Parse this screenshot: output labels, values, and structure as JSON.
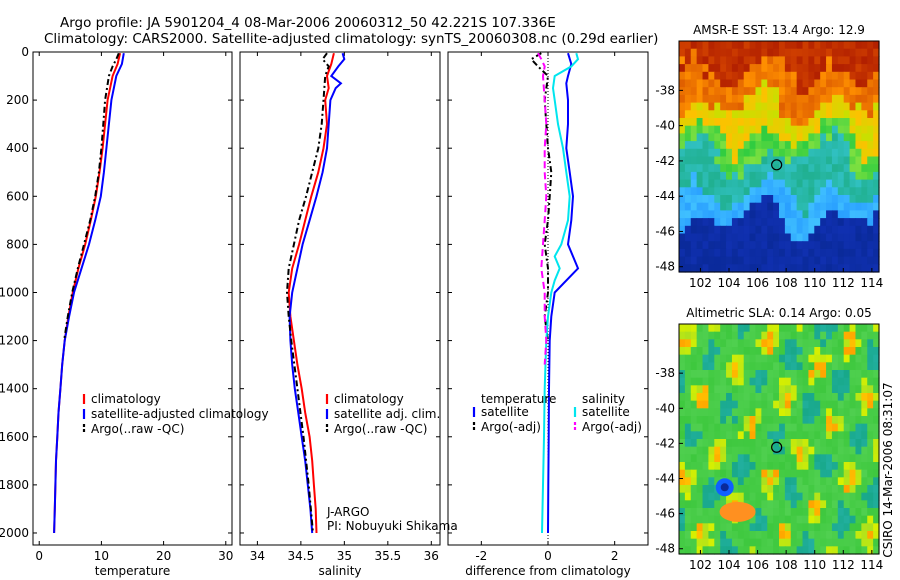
{
  "header": {
    "line1": "Argo profile: JA 5901204_4 08-Mar-2006 20060312_50 42.221S 107.336E",
    "line2": "Climatology: CARS2000. Satellite-adjusted climatology: synTS_20060308.nc (0.29d earlier)"
  },
  "chart_data": [
    {
      "type": "line",
      "xlabel": "temperature",
      "xlim": [
        -1,
        31
      ],
      "xticks": [
        0,
        10,
        20,
        30
      ],
      "ylim": [
        2050,
        0
      ],
      "yticks": [
        0,
        200,
        400,
        600,
        800,
        1000,
        1200,
        1400,
        1600,
        1800,
        2000
      ],
      "legend": [
        "climatology",
        "satellite-adjusted climatology",
        "Argo(..raw -QC)"
      ],
      "series": [
        {
          "name": "climatology",
          "color": "#ff0000",
          "style": "solid",
          "depth": [
            5,
            50,
            100,
            200,
            300,
            400,
            500,
            600,
            700,
            800,
            900,
            1000,
            1100,
            1200,
            1300,
            1400,
            1500,
            1600,
            1700,
            1800,
            1900,
            2000
          ],
          "values": [
            13.0,
            12.6,
            11.8,
            11.0,
            10.6,
            10.2,
            9.7,
            9.1,
            8.3,
            7.4,
            6.3,
            5.4,
            4.7,
            4.1,
            3.7,
            3.4,
            3.1,
            2.9,
            2.7,
            2.6,
            2.5,
            2.4
          ]
        },
        {
          "name": "satellite-adjusted climatology",
          "color": "#0000ff",
          "style": "solid",
          "depth": [
            5,
            50,
            100,
            200,
            300,
            400,
            500,
            600,
            700,
            800,
            900,
            1000,
            1100,
            1200,
            1300,
            1400,
            1500,
            1600,
            1700,
            1800,
            1900,
            2000
          ],
          "values": [
            13.6,
            13.3,
            12.4,
            11.6,
            11.2,
            10.8,
            10.4,
            9.9,
            9.0,
            8.0,
            6.8,
            5.6,
            4.8,
            4.1,
            3.7,
            3.4,
            3.1,
            2.9,
            2.7,
            2.6,
            2.5,
            2.4
          ]
        },
        {
          "name": "Argo(..raw -QC)",
          "color": "#000000",
          "style": "dashdot",
          "depth": [
            5,
            30,
            60,
            100,
            150,
            200,
            300,
            400,
            500,
            600,
            700,
            800,
            900,
            1000,
            1100,
            1200
          ],
          "values": [
            12.8,
            12.4,
            11.8,
            11.2,
            10.9,
            10.6,
            10.3,
            10.0,
            9.6,
            9.0,
            8.2,
            7.2,
            6.2,
            5.3,
            4.6,
            4.0
          ]
        }
      ]
    },
    {
      "type": "line",
      "xlabel": "salinity",
      "xlim": [
        33.8,
        36.1
      ],
      "xticks": [
        34,
        34.5,
        35,
        35.5,
        36
      ],
      "ylim": [
        2050,
        0
      ],
      "legend": [
        "climatology",
        "satellite adj. clim.",
        "Argo(..raw -QC)"
      ],
      "annotations": [
        "J-ARGO",
        "PI: Nobuyuki Shikama"
      ],
      "series": [
        {
          "name": "climatology",
          "color": "#ff0000",
          "style": "solid",
          "depth": [
            5,
            50,
            100,
            150,
            200,
            300,
            400,
            500,
            600,
            700,
            800,
            900,
            1000,
            1100,
            1200,
            1300,
            1400,
            1500,
            1600,
            1700,
            1800,
            1900,
            2000
          ],
          "values": [
            34.88,
            34.85,
            34.8,
            34.82,
            34.78,
            34.8,
            34.76,
            34.7,
            34.62,
            34.55,
            34.48,
            34.4,
            34.36,
            34.38,
            34.42,
            34.46,
            34.51,
            34.55,
            34.6,
            34.63,
            34.65,
            34.67,
            34.68
          ]
        },
        {
          "name": "satellite adj. clim.",
          "color": "#0000ff",
          "style": "solid",
          "depth": [
            5,
            30,
            60,
            100,
            130,
            150,
            200,
            300,
            400,
            500,
            600,
            700,
            800,
            900,
            1000,
            1100,
            1200,
            1300,
            1400,
            1500,
            1600,
            1700,
            1800,
            1900,
            2000
          ],
          "values": [
            34.98,
            35.0,
            34.93,
            34.85,
            34.96,
            34.9,
            34.84,
            34.82,
            34.8,
            34.75,
            34.68,
            34.6,
            34.52,
            34.46,
            34.4,
            34.37,
            34.38,
            34.4,
            34.43,
            34.47,
            34.51,
            34.55,
            34.58,
            34.61,
            34.63
          ]
        },
        {
          "name": "Argo(..raw -QC)",
          "color": "#000000",
          "style": "dashdot",
          "depth": [
            5,
            30,
            60,
            100,
            200,
            300,
            400,
            500,
            600,
            700,
            800,
            900,
            1000,
            1100,
            1200,
            1400,
            1600,
            1800,
            2000
          ],
          "values": [
            34.8,
            34.75,
            34.82,
            34.78,
            34.76,
            34.74,
            34.7,
            34.63,
            34.56,
            34.48,
            34.42,
            34.36,
            34.34,
            34.36,
            34.39,
            34.46,
            34.53,
            34.59,
            34.64
          ]
        }
      ]
    },
    {
      "type": "line",
      "xlabel": "difference from climatology",
      "xlim": [
        -3,
        3
      ],
      "xticks": [
        -2,
        0,
        2
      ],
      "ylim": [
        2050,
        0
      ],
      "legend_headers": [
        "temperature",
        "salinity"
      ],
      "legend": [
        "satellite",
        "Argo(-adj)",
        "satellite",
        "Argo(-adj)"
      ],
      "series": [
        {
          "name": "temperature satellite",
          "color": "#0000ff",
          "style": "solid",
          "depth": [
            5,
            50,
            100,
            130,
            200,
            300,
            400,
            500,
            600,
            700,
            800,
            900,
            1000,
            1100,
            1200,
            1400,
            1600,
            1800,
            2000
          ],
          "values": [
            0.6,
            0.7,
            0.6,
            0.55,
            0.6,
            0.6,
            0.55,
            0.65,
            0.75,
            0.7,
            0.6,
            0.9,
            0.2,
            0.1,
            0.05,
            0.03,
            0.02,
            0.01,
            0.0
          ]
        },
        {
          "name": "temperature Argo(-adj)",
          "color": "#000000",
          "style": "dashdot",
          "depth": [
            5,
            30,
            60,
            100,
            200,
            300,
            400,
            500,
            600,
            700,
            800,
            900,
            1000,
            1100,
            1200
          ],
          "values": [
            -0.2,
            -0.5,
            -0.3,
            0.0,
            -0.1,
            -0.05,
            0.0,
            0.1,
            0.05,
            0.0,
            -0.1,
            0.0,
            0.0,
            -0.1,
            0.0
          ]
        },
        {
          "name": "salinity satellite",
          "color": "#00e5ee",
          "style": "solid",
          "depth": [
            5,
            30,
            60,
            100,
            150,
            200,
            300,
            400,
            500,
            600,
            700,
            800,
            850,
            900,
            950,
            1000,
            1100,
            1200,
            1400,
            1600,
            1800,
            2000
          ],
          "values": [
            0.85,
            0.9,
            0.7,
            0.2,
            0.15,
            0.2,
            0.3,
            0.45,
            0.55,
            0.65,
            0.6,
            0.4,
            0.2,
            0.35,
            0.2,
            0.1,
            0.0,
            -0.05,
            -0.1,
            -0.12,
            -0.15,
            -0.18
          ]
        },
        {
          "name": "salinity Argo(-adj)",
          "color": "#ff00ff",
          "style": "dashed",
          "depth": [
            5,
            30,
            60,
            100,
            200,
            300,
            400,
            500,
            600,
            700,
            800,
            900,
            1000,
            1100,
            1200,
            1300
          ],
          "values": [
            -0.3,
            -0.2,
            -0.1,
            -0.15,
            -0.1,
            -0.05,
            -0.1,
            -0.1,
            -0.05,
            -0.1,
            -0.15,
            -0.2,
            -0.1,
            -0.1,
            -0.05,
            -0.1
          ]
        }
      ]
    },
    {
      "type": "heatmap",
      "title": "AMSR-E SST: 13.4 Argo: 12.9",
      "xticks": [
        102,
        104,
        106,
        108,
        110,
        112,
        114
      ],
      "yticks": [
        -38,
        -40,
        -42,
        -44,
        -46,
        -48
      ],
      "xlim": [
        100.5,
        114.5
      ],
      "ylim": [
        -48.3,
        -35.2
      ],
      "marker": {
        "lon": 107.336,
        "lat": -42.221
      }
    },
    {
      "type": "heatmap",
      "title": "Altimetric SLA: 0.14 Argo: 0.05",
      "xticks": [
        102,
        104,
        106,
        108,
        110,
        112,
        114
      ],
      "yticks": [
        -38,
        -40,
        -42,
        -44,
        -46,
        -48
      ],
      "xlim": [
        100.5,
        114.5
      ],
      "ylim": [
        -48.3,
        -35.2
      ],
      "marker": {
        "lon": 107.336,
        "lat": -42.221
      }
    }
  ],
  "side_label": "CSIRO 14-Mar-2006 08:31:07",
  "map_palette": {
    "hot": "#b22000",
    "warm": "#ff9000",
    "mid": "#2ecc40",
    "cool": "#2aa0ff",
    "cold": "#0a2a9a",
    "green": "#3ec83e"
  }
}
